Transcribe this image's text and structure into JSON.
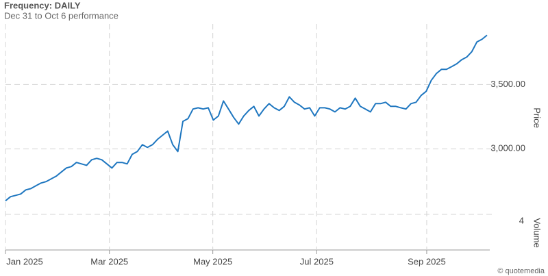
{
  "chart_data": {
    "type": "line",
    "title": "Frequency: DAILY",
    "subtitle": "Dec 31 to Oct 6 performance",
    "y_label": "Price",
    "y2_label": "Volume",
    "credit": "© quotemedia",
    "color": "#1f77c0",
    "grid": true,
    "xlim": [
      0,
      95
    ],
    "xticks": [
      {
        "value": 0,
        "label": "Jan 2025"
      },
      {
        "value": 20.5,
        "label": "Mar 2025"
      },
      {
        "value": 40.9,
        "label": "May 2025"
      },
      {
        "value": 61.4,
        "label": "Jul 2025"
      },
      {
        "value": 83.1,
        "label": "Sep 2025"
      }
    ],
    "ylim": [
      2560,
      3970
    ],
    "yticks": [
      {
        "value": 3000,
        "label": "3,000.00"
      },
      {
        "value": 3500,
        "label": "3,500.00"
      }
    ],
    "y2lim": [
      0,
      5
    ],
    "y2ticks": [
      4
    ],
    "values": [
      2596,
      2628,
      2638,
      2649,
      2681,
      2691,
      2713,
      2734,
      2745,
      2766,
      2787,
      2819,
      2851,
      2862,
      2894,
      2883,
      2872,
      2915,
      2926,
      2915,
      2883,
      2851,
      2894,
      2894,
      2883,
      2957,
      2979,
      3032,
      3011,
      3032,
      3074,
      3106,
      3138,
      3032,
      2979,
      3213,
      3234,
      3309,
      3319,
      3309,
      3319,
      3223,
      3255,
      3372,
      3309,
      3245,
      3192,
      3255,
      3298,
      3330,
      3255,
      3309,
      3351,
      3319,
      3298,
      3330,
      3404,
      3362,
      3340,
      3309,
      3319,
      3255,
      3319,
      3319,
      3309,
      3287,
      3319,
      3309,
      3330,
      3394,
      3330,
      3309,
      3287,
      3351,
      3351,
      3362,
      3330,
      3330,
      3319,
      3309,
      3351,
      3362,
      3415,
      3447,
      3532,
      3585,
      3617,
      3617,
      3638,
      3660,
      3692,
      3713,
      3755,
      3830,
      3851,
      3883
    ]
  }
}
